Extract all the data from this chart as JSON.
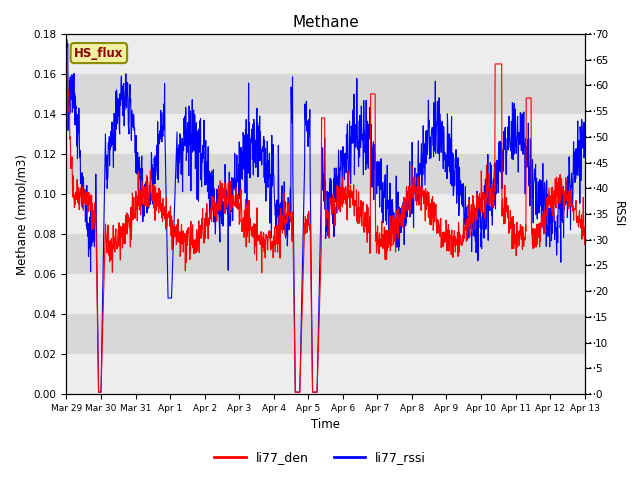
{
  "title": "Methane",
  "ylabel_left": "Methane (mmol/m3)",
  "ylabel_right": "RSSI",
  "xlabel": "Time",
  "legend_label1": "li77_den",
  "legend_label2": "li77_rssi",
  "annotation_text": "HS_flux",
  "color_red": "#FF0000",
  "color_blue": "#0000FF",
  "ylim_left": [
    0.0,
    0.18
  ],
  "ylim_right": [
    0,
    70
  ],
  "yticks_left": [
    0.0,
    0.02,
    0.04,
    0.06,
    0.08,
    0.1,
    0.12,
    0.14,
    0.16,
    0.18
  ],
  "yticks_right": [
    0,
    5,
    10,
    15,
    20,
    25,
    30,
    35,
    40,
    45,
    50,
    55,
    60,
    65,
    70
  ],
  "bg_color": "#FFFFFF",
  "plot_bg_color": "#D8D8D8",
  "linewidth": 0.8,
  "n_points": 1500
}
